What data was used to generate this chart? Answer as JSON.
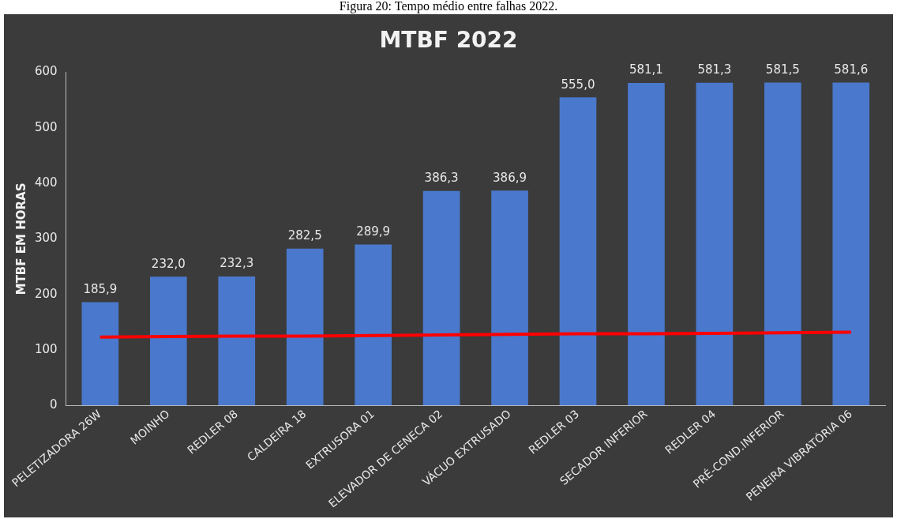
{
  "chart_data": {
    "type": "bar",
    "title": "MTBF 2022",
    "ylabel": "MTBF EM HORAS",
    "annotations": [
      "Figura 20: Tempo médio entre falhas 2022."
    ],
    "categories": [
      "PELETIZADORA 26W",
      "MOINHO",
      "REDLER 08",
      "CALDEIRA 18",
      "EXTRUSORA 01",
      "ELEVADOR DE CENECA 02",
      "VÁCUO EXTRUSADO",
      "REDLER 03",
      "SECADOR INFERIOR",
      "REDLER 04",
      "PRÉ-COND.INFERIOR",
      "PENEIRA VIBRATÓRIA 06"
    ],
    "series": [
      {
        "color": "#4a78cc",
        "values": [
          185.9,
          232.0,
          232.3,
          282.5,
          289.9,
          386.3,
          386.9,
          555.0,
          581.1,
          581.3,
          581.5,
          581.6
        ],
        "value_labels": [
          "185,9",
          "232,0",
          "232,3",
          "282,5",
          "289,9",
          "386,3",
          "386,9",
          "555,0",
          "581,1",
          "581,3",
          "581,5",
          "581,6"
        ]
      },
      {
        "type": "line",
        "color": "#ff0000",
        "values": [
          123,
          124,
          125,
          125,
          126,
          127,
          128,
          129,
          129,
          130,
          131,
          132
        ]
      }
    ],
    "ylim": [
      0,
      600
    ],
    "yticks": [
      0,
      100,
      200,
      300,
      400,
      500,
      600
    ],
    "legend": false
  }
}
